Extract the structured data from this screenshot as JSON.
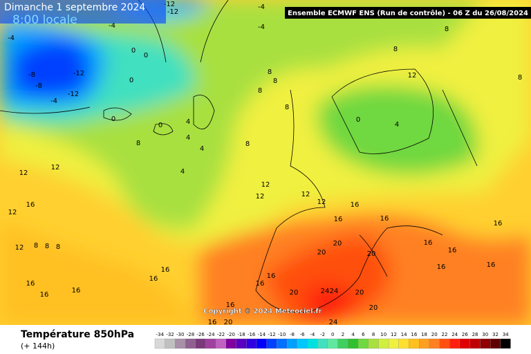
{
  "header": {
    "title": "Dimanche 1 septembre 2024",
    "time": "8:00 locale",
    "model": "Ensemble ECMWF ENS  (Run de contrôle)  -  06 Z du 26/08/2024"
  },
  "copyright": "Copyright © 2024 Meteociel.fr",
  "footer": {
    "parameter": "Température 850hPa",
    "lead": "(+ 144h)"
  },
  "legend": {
    "labels": [
      -34,
      -32,
      -30,
      -28,
      -26,
      -24,
      -22,
      -20,
      -18,
      -16,
      -14,
      -12,
      -10,
      -8,
      -6,
      -4,
      -2,
      0,
      2,
      4,
      6,
      8,
      10,
      12,
      14,
      16,
      18,
      20,
      22,
      24,
      26,
      28,
      30,
      32,
      34
    ],
    "colors": [
      "#d8d8d8",
      "#c0c0c0",
      "#a890a8",
      "#906090",
      "#7a3a7a",
      "#a040a0",
      "#c060c0",
      "#8000a0",
      "#5a00c0",
      "#3000e0",
      "#0000ff",
      "#0040ff",
      "#0070ff",
      "#00a0ff",
      "#00c8ff",
      "#00e0e0",
      "#40e0c0",
      "#60e8a0",
      "#40d060",
      "#30c030",
      "#70d840",
      "#a8e040",
      "#d0f040",
      "#f0f040",
      "#ffe030",
      "#ffc020",
      "#ffa020",
      "#ff8020",
      "#ff5010",
      "#ff2010",
      "#e00000",
      "#c00000",
      "#900000",
      "#600000",
      "#000000"
    ]
  },
  "map_labels": [
    -12,
    -12,
    -4,
    -4,
    -4,
    -4,
    0,
    0,
    -12,
    -8,
    -8,
    -12,
    -4,
    0,
    0,
    0,
    4,
    4,
    4,
    4,
    8,
    8,
    8,
    8,
    8,
    8,
    8,
    8,
    8,
    12,
    4,
    0,
    12,
    12,
    16,
    12,
    12,
    12,
    12,
    12,
    16,
    16,
    16,
    16,
    16,
    20,
    20,
    20,
    16,
    16,
    16,
    16,
    16,
    16,
    16,
    16,
    16,
    16,
    20,
    24,
    24,
    20,
    20,
    24,
    20,
    16,
    16,
    12,
    8,
    8,
    8
  ]
}
